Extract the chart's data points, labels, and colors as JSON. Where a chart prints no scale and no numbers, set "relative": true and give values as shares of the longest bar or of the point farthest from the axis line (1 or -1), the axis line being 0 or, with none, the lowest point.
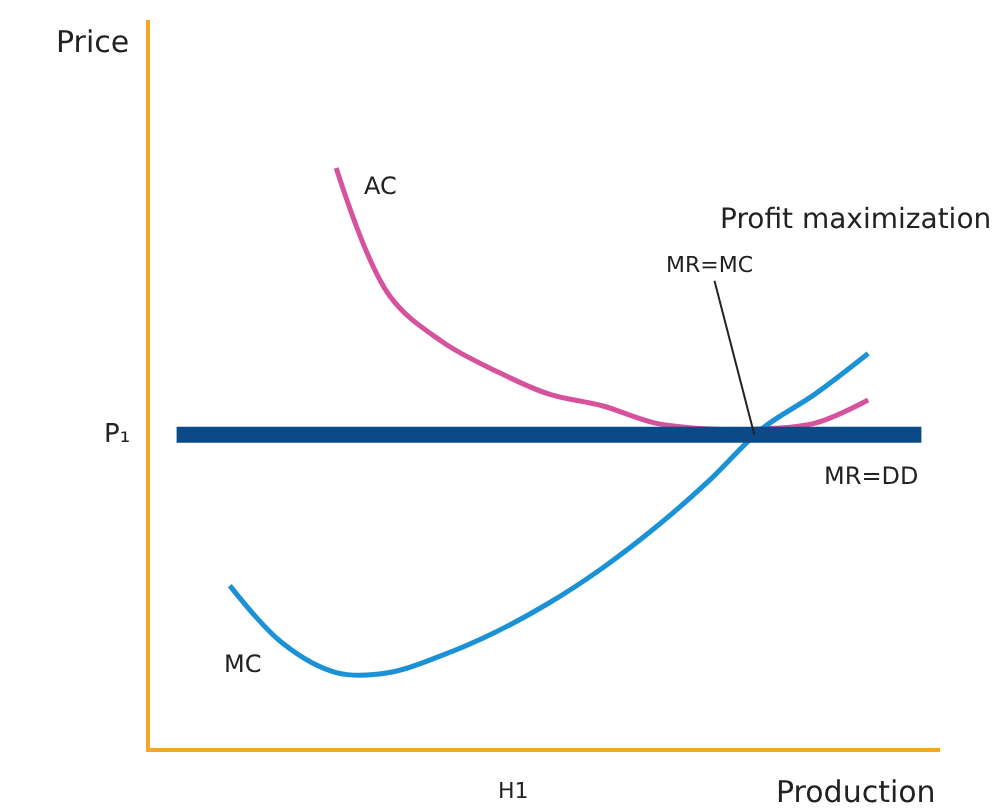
{
  "chart_data": {
    "type": "line",
    "relative": true,
    "xlabel": "Production",
    "ylabel": "Price",
    "legend": false,
    "marker": "none",
    "line_style": "solid",
    "categories": [
      null,
      null,
      null,
      null,
      null,
      null,
      null,
      null,
      null,
      null,
      null,
      null,
      null,
      null,
      null
    ],
    "series": [
      {
        "name": "AC",
        "color": "#d6529c",
        "values": [
          null,
          null,
          null,
          1.0,
          0.78,
          0.7,
          0.65,
          0.61,
          0.59,
          0.56,
          0.55,
          0.55,
          0.56,
          0.6,
          null
        ]
      },
      {
        "name": "MC",
        "color": "#1b92d6",
        "values": [
          null,
          0.28,
          0.18,
          0.13,
          0.13,
          0.16,
          0.2,
          0.25,
          0.31,
          0.38,
          0.46,
          0.55,
          0.61,
          0.68,
          null
        ]
      },
      {
        "name": "MR=DD",
        "color": "#0b4a86",
        "values": [
          0.54,
          0.54,
          0.54,
          0.54,
          0.54,
          0.54,
          0.54,
          0.54,
          0.54,
          0.54,
          0.54,
          0.54,
          0.54,
          0.54,
          0.54
        ]
      }
    ],
    "annotations": [
      "P₁",
      "H1",
      "Profit maximization",
      "MR=MC"
    ]
  }
}
